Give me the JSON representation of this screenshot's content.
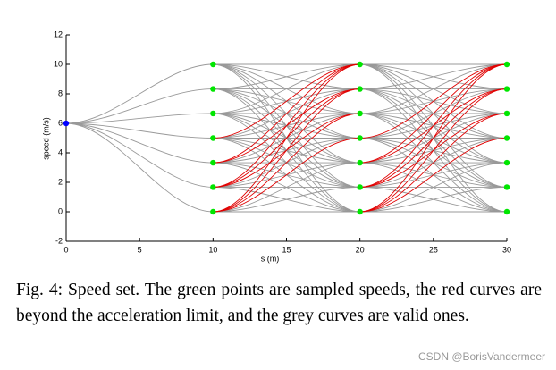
{
  "chart_data": {
    "type": "speed-set",
    "xlabel": "s (m)",
    "ylabel": "speed (m/s)",
    "xlim": [
      0,
      30
    ],
    "ylim": [
      -2,
      12
    ],
    "xticks": [
      0,
      5,
      10,
      15,
      20,
      25,
      30
    ],
    "yticks": [
      -2,
      0,
      2,
      4,
      6,
      8,
      10,
      12
    ],
    "start": {
      "x": 0,
      "y": 6,
      "color": "#0000ff"
    },
    "stations": [
      10,
      20,
      30
    ],
    "speeds": [
      0,
      1.67,
      3.33,
      5,
      6.67,
      8.33,
      10
    ],
    "point_color": "#00e600",
    "curve_color": "#999999",
    "invalid_color": "#e00000",
    "invalid_curves": [
      [
        0,
        3
      ],
      [
        0,
        4
      ],
      [
        0,
        5
      ],
      [
        0,
        6
      ],
      [
        1,
        4
      ],
      [
        1,
        5
      ],
      [
        1,
        6
      ],
      [
        2,
        5
      ],
      [
        2,
        6
      ],
      [
        3,
        6
      ]
    ]
  },
  "caption": "Fig. 4: Speed set. The green points are sampled speeds, the red curves are beyond the acceleration limit, and the grey curves are valid ones.",
  "watermark": "CSDN @BorisVandermeer"
}
